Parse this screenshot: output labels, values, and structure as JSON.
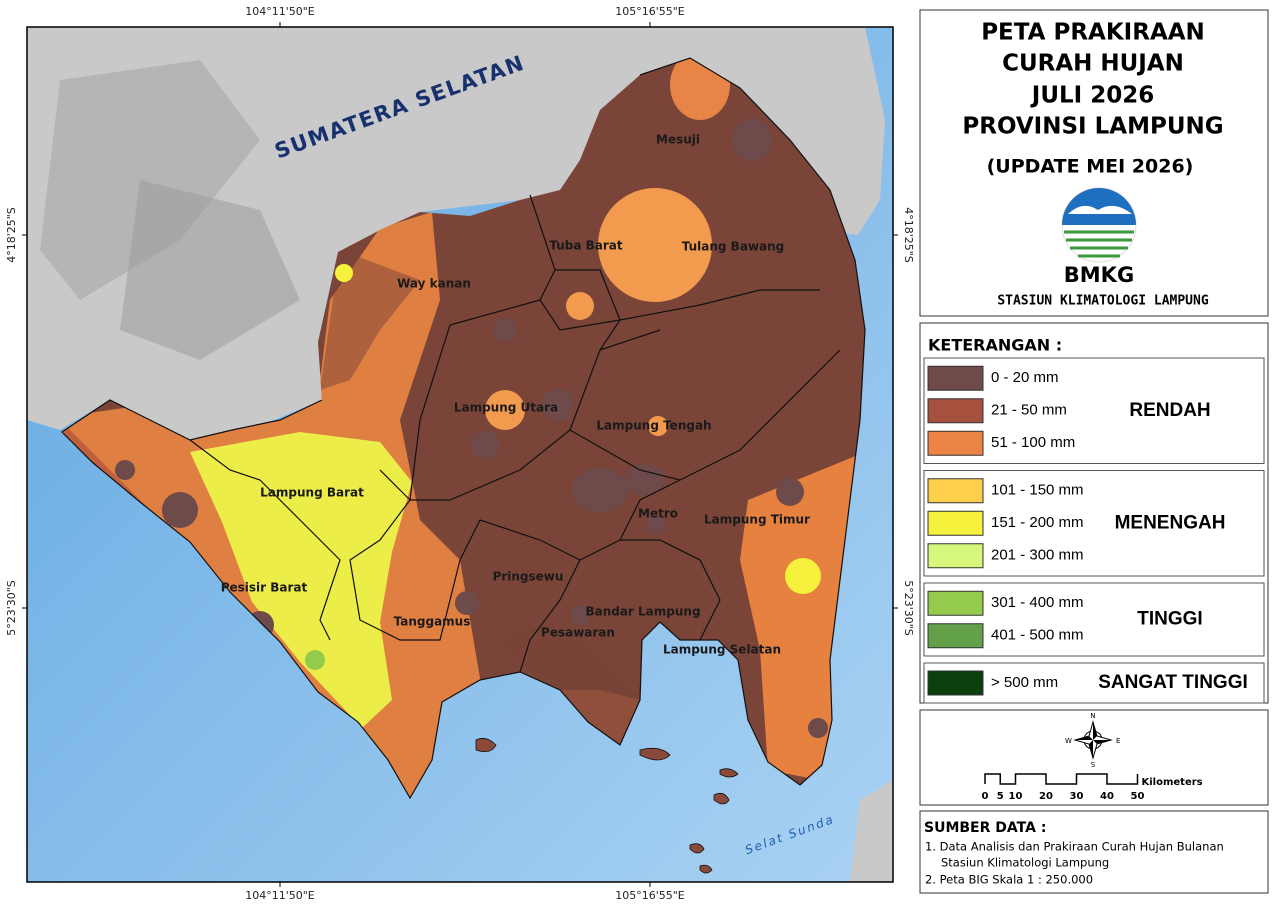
{
  "map": {
    "lon_labels": [
      "104°11'50\"E",
      "105°16'55\"E"
    ],
    "lat_labels": [
      "4°18'25\"S",
      "5°23'30\"S"
    ],
    "sea_labels": [
      "SUMATERA SELATAN",
      "Selat Sunda"
    ],
    "regions": [
      "Mesuji",
      "Tuba Barat",
      "Tulang Bawang",
      "Way kanan",
      "Lampung Utara",
      "Lampung Tengah",
      "Lampung Barat",
      "Metro",
      "Lampung Timur",
      "Pesisir Barat",
      "Pringsewu",
      "Bandar Lampung",
      "Tanggamus",
      "Pesawaran",
      "Lampung Selatan"
    ]
  },
  "header": {
    "title_lines": [
      "PETA PRAKIRAAN",
      "CURAH HUJAN",
      "JULI 2026",
      "PROVINSI LAMPUNG"
    ],
    "update": "(UPDATE MEI 2026)",
    "logo_text": "BMKG",
    "station": "STASIUN  KLIMATOLOGI  LAMPUNG"
  },
  "legend": {
    "heading": "KETERANGAN :",
    "groups": [
      {
        "label": "RENDAH",
        "items": [
          {
            "range": "0 - 20  mm",
            "color": "#6e4a4a"
          },
          {
            "range": "21 - 50  mm",
            "color": "#a6503e"
          },
          {
            "range": "51 - 100  mm",
            "color": "#ec8446"
          }
        ]
      },
      {
        "label": "MENENGAH",
        "items": [
          {
            "range": "101 - 150  mm",
            "color": "#fdcf4a"
          },
          {
            "range": "151 - 200  mm",
            "color": "#f6f13c"
          },
          {
            "range": "201 - 300  mm",
            "color": "#d6f77c"
          }
        ]
      },
      {
        "label": "TINGGI",
        "items": [
          {
            "range": "301 - 400  mm",
            "color": "#94cb4c"
          },
          {
            "range": "401 - 500  mm",
            "color": "#62a04a"
          }
        ]
      },
      {
        "label": "SANGAT TINGGI",
        "items": [
          {
            "range": "> 500  mm",
            "color": "#0b3f0e"
          }
        ]
      }
    ]
  },
  "compass": {
    "n": "N",
    "e": "E",
    "s": "S",
    "w": "W"
  },
  "scale": {
    "ticks": [
      0,
      5,
      10,
      20,
      30,
      40,
      50
    ],
    "unit": "Kilometers"
  },
  "source": {
    "heading": "SUMBER DATA :",
    "lines": [
      "1. Data Analisis dan Prakiraan Curah Hujan Bulanan",
      "Stasiun Klimatologi Lampung",
      "2. Peta BIG Skala 1 : 250.000"
    ]
  }
}
